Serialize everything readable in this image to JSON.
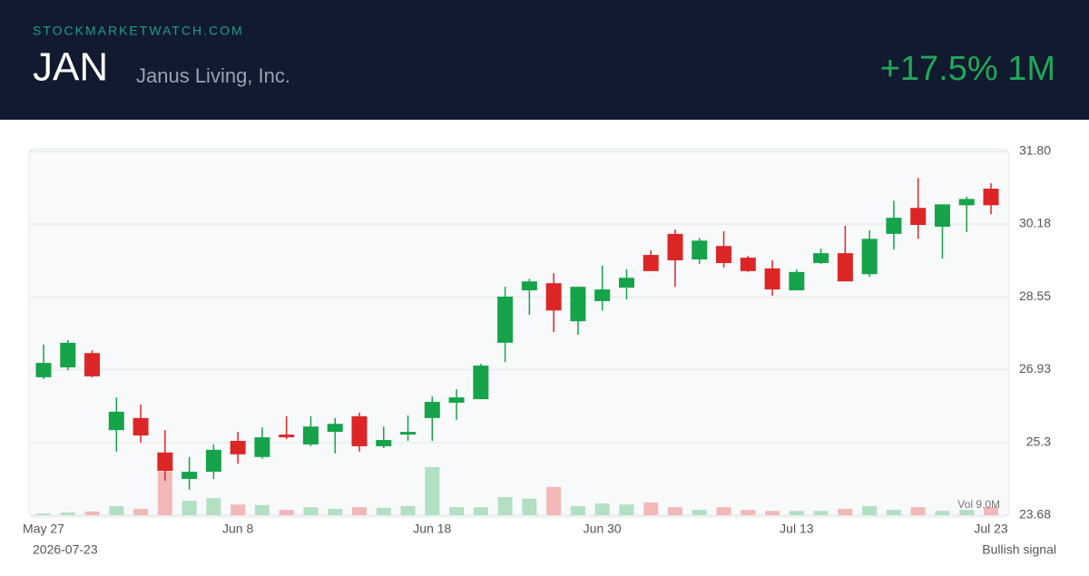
{
  "header": {
    "site": "STOCKMARKETWATCH.COM",
    "ticker": "JAN",
    "company": "Janus Living, Inc.",
    "change": "+17.5% 1M"
  },
  "chart_data": {
    "type": "candlestick",
    "categories": [
      "May 27",
      null,
      null,
      null,
      null,
      null,
      null,
      null,
      "Jun 8",
      null,
      null,
      null,
      null,
      null,
      null,
      null,
      "Jun 18",
      null,
      null,
      null,
      null,
      null,
      null,
      "Jun 30",
      null,
      null,
      null,
      null,
      null,
      null,
      null,
      "Jul 13",
      null,
      null,
      null,
      null,
      null,
      null,
      null,
      "Jul 23"
    ],
    "open": [
      26.76,
      26.98,
      27.3,
      25.58,
      25.85,
      25.08,
      24.49,
      24.65,
      25.34,
      24.98,
      25.48,
      25.26,
      25.54,
      25.89,
      25.22,
      25.48,
      25.85,
      26.19,
      26.27,
      27.53,
      28.7,
      28.86,
      28.01,
      28.46,
      28.76,
      29.49,
      29.96,
      29.39,
      29.69,
      29.43,
      29.19,
      28.7,
      29.31,
      29.53,
      29.06,
      29.96,
      30.54,
      30.12,
      30.6,
      30.97
    ],
    "high": [
      27.49,
      27.59,
      27.36,
      26.31,
      26.15,
      25.58,
      24.98,
      25.26,
      25.54,
      25.64,
      25.89,
      25.89,
      25.85,
      25.97,
      25.66,
      25.91,
      26.33,
      26.49,
      27.06,
      28.78,
      28.96,
      29.08,
      28.78,
      29.25,
      29.17,
      29.59,
      30.06,
      29.87,
      30.02,
      29.47,
      29.37,
      29.17,
      29.63,
      30.14,
      30.04,
      30.7,
      31.21,
      30.62,
      30.79,
      31.09
    ],
    "low": [
      26.72,
      26.92,
      26.76,
      25.1,
      25.3,
      24.45,
      24.25,
      24.49,
      24.83,
      24.94,
      25.38,
      25.22,
      25.06,
      25.1,
      25.18,
      25.34,
      25.34,
      25.81,
      26.27,
      27.1,
      28.15,
      27.77,
      27.71,
      28.25,
      28.5,
      29.13,
      28.78,
      29.29,
      29.21,
      29.11,
      28.58,
      28.7,
      29.29,
      28.9,
      29.0,
      29.61,
      29.85,
      29.41,
      30.0,
      30.4
    ],
    "close": [
      27.08,
      27.53,
      26.78,
      25.99,
      25.46,
      24.67,
      24.65,
      25.14,
      25.04,
      25.42,
      25.42,
      25.66,
      25.72,
      25.22,
      25.36,
      25.54,
      26.21,
      26.31,
      27.02,
      28.56,
      28.9,
      28.25,
      28.78,
      28.72,
      28.98,
      29.13,
      29.37,
      29.81,
      29.31,
      29.13,
      28.72,
      29.11,
      29.53,
      28.9,
      29.85,
      30.32,
      30.16,
      30.62,
      30.74,
      30.6
    ],
    "volume": [
      0.3,
      0.5,
      0.7,
      1.7,
      1.2,
      8.2,
      2.7,
      3.2,
      2.0,
      1.9,
      1.0,
      1.5,
      1.2,
      1.5,
      1.4,
      1.7,
      9.0,
      1.5,
      1.5,
      3.4,
      3.1,
      5.3,
      1.7,
      2.2,
      2.0,
      2.4,
      1.5,
      1.0,
      1.5,
      1.0,
      0.8,
      0.8,
      0.8,
      1.2,
      1.7,
      1.0,
      1.5,
      0.8,
      1.0,
      1.5
    ],
    "volume_label": "Vol 9.0M",
    "up_color": "#16a34a",
    "down_color": "#dc2626",
    "ylim": [
      23.68,
      31.8
    ],
    "yticks": [
      23.68,
      25.3,
      26.93,
      28.55,
      30.18,
      {
        "value": 31.8,
        "label": "31.80"
      }
    ],
    "grid": true
  },
  "footer": {
    "date": "2026-07-23",
    "signal": "Bullish signal"
  }
}
